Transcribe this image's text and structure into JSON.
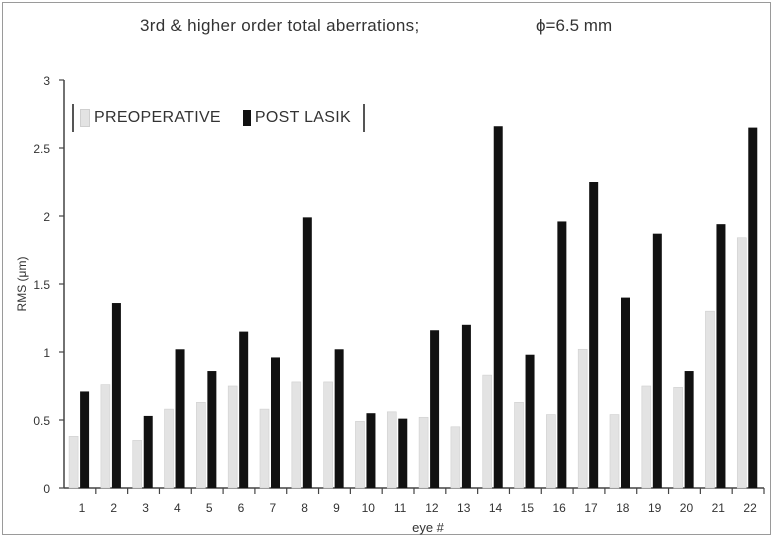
{
  "chart_data": {
    "type": "bar",
    "title": "3rd & higher order total aberrations;",
    "subtitle": "ϕ=6.5 mm",
    "xlabel": "eye #",
    "ylabel": "RMS (μm)",
    "ylim": [
      0,
      3
    ],
    "yticks": [
      "0",
      "0.5",
      "1",
      "1.5",
      "2",
      "2.5",
      "3"
    ],
    "categories": [
      "1",
      "2",
      "3",
      "4",
      "5",
      "6",
      "7",
      "8",
      "9",
      "10",
      "11",
      "12",
      "13",
      "14",
      "15",
      "16",
      "17",
      "18",
      "19",
      "20",
      "21",
      "22"
    ],
    "series": [
      {
        "name": "PREOPERATIVE",
        "color": "#e3e3e3",
        "values": [
          0.38,
          0.76,
          0.35,
          0.58,
          0.63,
          0.75,
          0.58,
          0.78,
          0.78,
          0.49,
          0.56,
          0.52,
          0.45,
          0.83,
          0.63,
          0.54,
          1.02,
          0.54,
          0.75,
          0.74,
          1.3,
          1.84
        ]
      },
      {
        "name": "POST LASIK",
        "color": "#111111",
        "values": [
          0.71,
          1.36,
          0.53,
          1.02,
          0.86,
          1.15,
          0.96,
          1.99,
          1.02,
          0.55,
          0.51,
          1.16,
          1.2,
          2.66,
          0.98,
          1.96,
          2.25,
          1.4,
          1.87,
          0.86,
          1.94,
          2.65
        ]
      }
    ],
    "grid": false,
    "legend_position": "top-left"
  }
}
